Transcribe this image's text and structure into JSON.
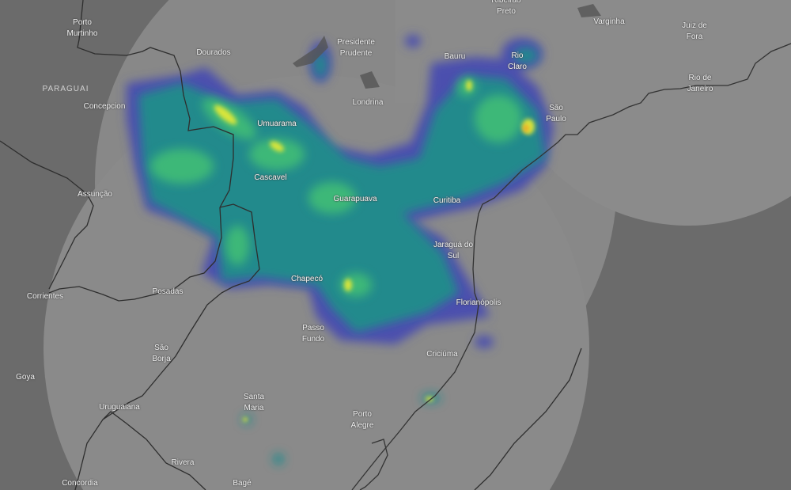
{
  "map": {
    "type": "weather-radar",
    "colors": {
      "background": "#6b6b6b",
      "coverage": "#8a8a8a",
      "border": "#2e2e2e",
      "rain_light": "#4b4fae",
      "rain_mid": "#238a8c",
      "rain_green": "#3cb878",
      "rain_yellow": "#d9e53a",
      "rain_orange": "#f0a825"
    },
    "country_labels": [
      "PARAGUAI"
    ],
    "cities": [
      {
        "id": "porto-murtinho",
        "lines": [
          "Porto",
          "Murtinho"
        ]
      },
      {
        "id": "dourados",
        "lines": [
          "Dourados"
        ]
      },
      {
        "id": "presidente-prudente",
        "lines": [
          "Presidente",
          "Prudente"
        ]
      },
      {
        "id": "ribeirao-preto",
        "lines": [
          "Ribeirão",
          "Preto"
        ]
      },
      {
        "id": "varginha",
        "lines": [
          "Varginha"
        ]
      },
      {
        "id": "juiz-de-fora",
        "lines": [
          "Juiz de",
          "Fora"
        ]
      },
      {
        "id": "bauru",
        "lines": [
          "Bauru"
        ]
      },
      {
        "id": "rio-claro",
        "lines": [
          "Rio",
          "Claro"
        ]
      },
      {
        "id": "sao-paulo",
        "lines": [
          "São",
          "Paulo"
        ]
      },
      {
        "id": "rio-de-janeiro",
        "lines": [
          "Rio de",
          "Janeiro"
        ]
      },
      {
        "id": "concepcion",
        "lines": [
          "Concepcion"
        ]
      },
      {
        "id": "umuarama",
        "lines": [
          "Umuarama"
        ]
      },
      {
        "id": "londrina",
        "lines": [
          "Londrina"
        ]
      },
      {
        "id": "cascavel",
        "lines": [
          "Cascavel"
        ]
      },
      {
        "id": "assuncao",
        "lines": [
          "Assunção"
        ]
      },
      {
        "id": "guarapuava",
        "lines": [
          "Guarapuava"
        ]
      },
      {
        "id": "curitiba",
        "lines": [
          "Curitiba"
        ]
      },
      {
        "id": "jaragua-do-sul",
        "lines": [
          "Jaraguá do",
          "Sul"
        ]
      },
      {
        "id": "chapeco",
        "lines": [
          "Chapecó"
        ]
      },
      {
        "id": "florianopolis",
        "lines": [
          "Florianópolis"
        ]
      },
      {
        "id": "corrientes",
        "lines": [
          "Corrientes"
        ]
      },
      {
        "id": "posadas",
        "lines": [
          "Posadas"
        ]
      },
      {
        "id": "passo-fundo",
        "lines": [
          "Passo",
          "Fundo"
        ]
      },
      {
        "id": "sao-borja",
        "lines": [
          "São",
          "Borja"
        ]
      },
      {
        "id": "criciuma",
        "lines": [
          "Criciúma"
        ]
      },
      {
        "id": "goya",
        "lines": [
          "Goya"
        ]
      },
      {
        "id": "santa-maria",
        "lines": [
          "Santa",
          "Maria"
        ]
      },
      {
        "id": "uruguaiana",
        "lines": [
          "Uruguaiana"
        ]
      },
      {
        "id": "porto-alegre",
        "lines": [
          "Porto",
          "Alegre"
        ]
      },
      {
        "id": "rivera",
        "lines": [
          "Rivera"
        ]
      },
      {
        "id": "bage",
        "lines": [
          "Bagé"
        ]
      },
      {
        "id": "concordia",
        "lines": [
          "Concordia"
        ]
      }
    ]
  }
}
